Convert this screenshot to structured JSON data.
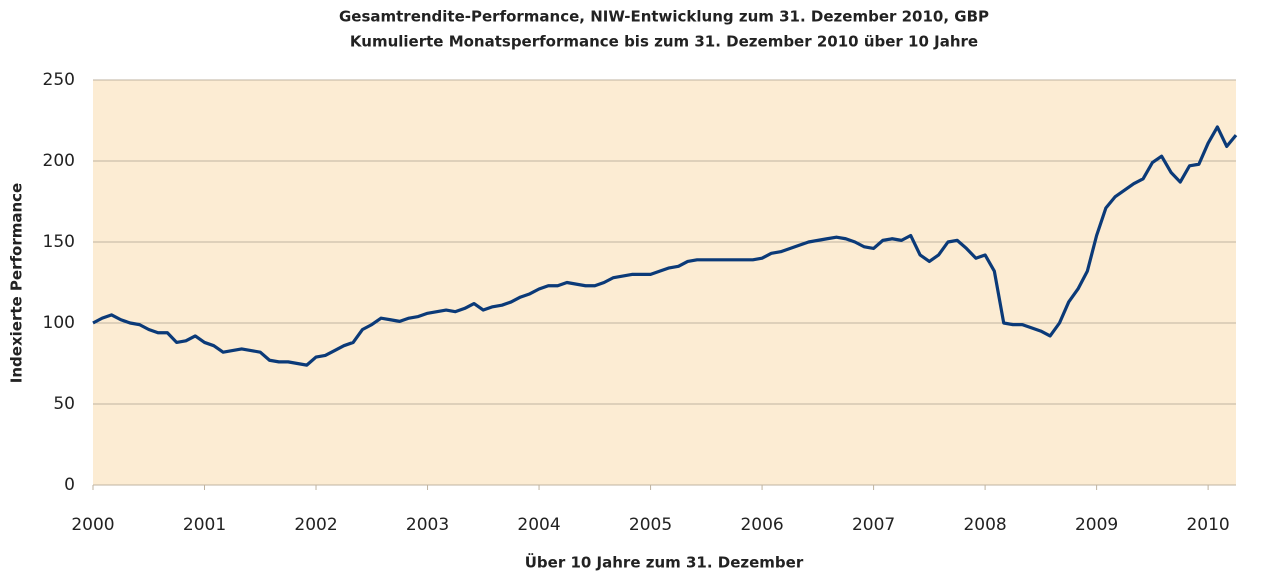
{
  "chart_data": {
    "type": "line",
    "title": "Gesamtrendite-Performance, NIW-Entwicklung zum 31. Dezember 2010, GBP",
    "subtitle": "Kumulierte Monatsperformance bis zum 31. Dezember 2010 über 10 Jahre",
    "xlabel": "Über 10 Jahre zum 31. Dezember",
    "ylabel": "Indexierte Performance",
    "x": [
      2000,
      2000.083,
      2000.167,
      2000.25,
      2000.333,
      2000.417,
      2000.5,
      2000.583,
      2000.667,
      2000.75,
      2000.833,
      2000.917,
      2001,
      2001.083,
      2001.167,
      2001.25,
      2001.333,
      2001.417,
      2001.5,
      2001.583,
      2001.667,
      2001.75,
      2001.833,
      2001.917,
      2002,
      2002.083,
      2002.167,
      2002.25,
      2002.333,
      2002.417,
      2002.5,
      2002.583,
      2002.667,
      2002.75,
      2002.833,
      2002.917,
      2003,
      2003.083,
      2003.167,
      2003.25,
      2003.333,
      2003.417,
      2003.5,
      2003.583,
      2003.667,
      2003.75,
      2003.833,
      2003.917,
      2004,
      2004.083,
      2004.167,
      2004.25,
      2004.333,
      2004.417,
      2004.5,
      2004.583,
      2004.667,
      2004.75,
      2004.833,
      2004.917,
      2005,
      2005.083,
      2005.167,
      2005.25,
      2005.333,
      2005.417,
      2005.5,
      2005.583,
      2005.667,
      2005.75,
      2005.833,
      2005.917,
      2006,
      2006.083,
      2006.167,
      2006.25,
      2006.333,
      2006.417,
      2006.5,
      2006.583,
      2006.667,
      2006.75,
      2006.833,
      2006.917,
      2007,
      2007.083,
      2007.167,
      2007.25,
      2007.333,
      2007.417,
      2007.5,
      2007.583,
      2007.667,
      2007.75,
      2007.833,
      2007.917,
      2008,
      2008.083,
      2008.167,
      2008.25,
      2008.333,
      2008.417,
      2008.5,
      2008.583,
      2008.667,
      2008.75,
      2008.833,
      2008.917,
      2009,
      2009.083,
      2009.167,
      2009.25,
      2009.333,
      2009.417,
      2009.5,
      2009.583,
      2009.667,
      2009.75,
      2009.833,
      2009.917,
      2010,
      2010.083,
      2010.167,
      2010.25
    ],
    "series": [
      {
        "name": "NIW",
        "color": "#0b3a78",
        "values": [
          100,
          103,
          105,
          102,
          100,
          99,
          96,
          94,
          94,
          88,
          89,
          92,
          88,
          86,
          82,
          83,
          84,
          83,
          82,
          77,
          76,
          76,
          75,
          74,
          79,
          80,
          83,
          86,
          88,
          96,
          99,
          103,
          102,
          101,
          103,
          104,
          106,
          107,
          108,
          107,
          109,
          112,
          108,
          110,
          111,
          113,
          116,
          118,
          121,
          123,
          123,
          125,
          124,
          123,
          123,
          125,
          128,
          129,
          130,
          130,
          130,
          132,
          134,
          135,
          138,
          139,
          139,
          139,
          139,
          139,
          139,
          139,
          140,
          143,
          144,
          146,
          148,
          150,
          151,
          152,
          153,
          152,
          150,
          147,
          146,
          151,
          152,
          151,
          154,
          142,
          138,
          142,
          150,
          151,
          146,
          140,
          142,
          132,
          100,
          99,
          99,
          97,
          95,
          92,
          100,
          113,
          121,
          132,
          154,
          171,
          178,
          182,
          186,
          189,
          199,
          203,
          193,
          187,
          197,
          198,
          211,
          221,
          209,
          216
        ]
      }
    ],
    "xlim": [
      2000,
      2010.25
    ],
    "xticks": [
      2000,
      2001,
      2002,
      2003,
      2004,
      2005,
      2006,
      2007,
      2008,
      2009,
      2010
    ],
    "ylim": [
      0,
      250
    ],
    "yticks": [
      0,
      50,
      100,
      150,
      200,
      250
    ],
    "grid": true
  }
}
